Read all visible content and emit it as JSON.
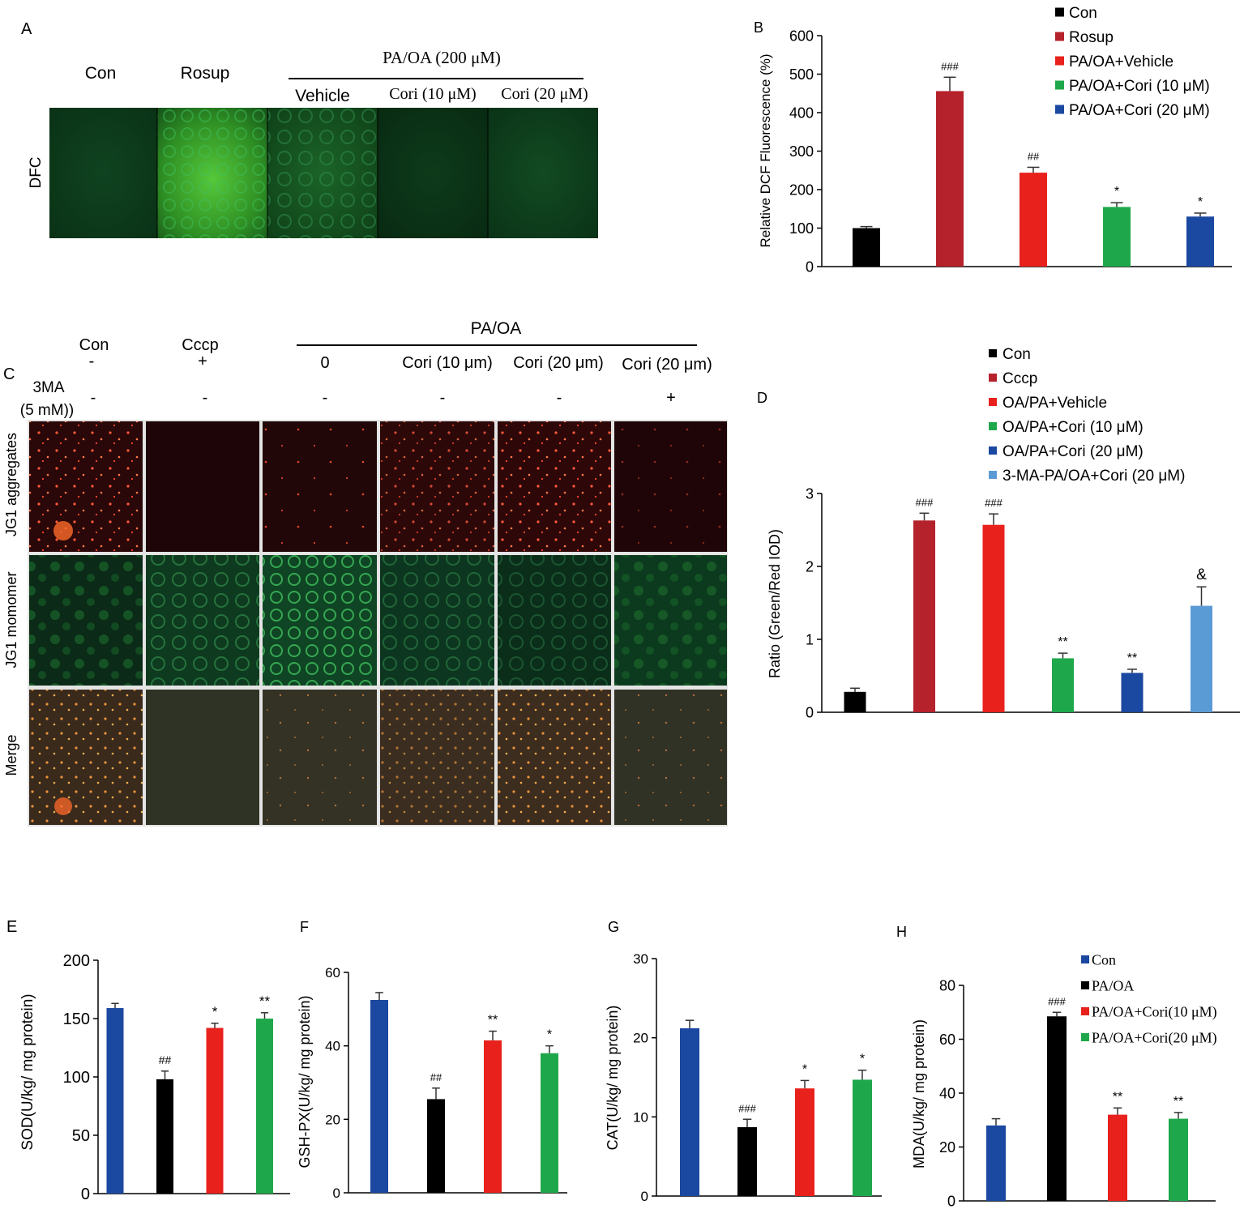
{
  "panels": {
    "A": {
      "letter": "A",
      "group_header": "PA/OA (200 μM)",
      "columns": [
        "Con",
        "Rosup",
        "Vehicle",
        "Cori (10 μM)",
        "Cori (20 μM)"
      ],
      "row_label": "DFC"
    },
    "C": {
      "letter": "C",
      "group_header": "PA/OA",
      "columns": [
        "Con",
        "Cccp",
        "0",
        "Cori (10 μm)",
        "Cori (20 μm)",
        "Cori (20 μm)"
      ],
      "cccp_row": [
        "-",
        "+"
      ],
      "treatment_label_line1": "3MA",
      "treatment_label_line2": "(5 mM))",
      "treatment_row": [
        "-",
        "-",
        "-",
        "-",
        "-",
        "+"
      ],
      "row_labels": [
        "JG1 aggregates",
        "JG1 momomer",
        "Merge"
      ]
    }
  },
  "chart_data": [
    {
      "id": "B",
      "type": "bar",
      "panel_label": "B",
      "ylabel": "Relative  DCF Fluorescence (%)",
      "ylim": [
        0,
        600
      ],
      "yticks": [
        0,
        100,
        200,
        300,
        400,
        500,
        600
      ],
      "legend_position": "top-right",
      "categories": [
        "Con",
        "Rosup",
        "PA/OA+Vehicle",
        "PA/OA+Cori (10 μM)",
        "PA/OA+Cori (20 μM)"
      ],
      "values": [
        100,
        456,
        244,
        155,
        130
      ],
      "errors": [
        4,
        36,
        14,
        11,
        9
      ],
      "annotations": [
        "",
        "###",
        "##",
        "*",
        "*"
      ],
      "colors": [
        "#000000",
        "#b5222b",
        "#e8211d",
        "#1fa84b",
        "#1b48a0"
      ]
    },
    {
      "id": "D",
      "type": "bar",
      "panel_label": "D",
      "ylabel": "Ratio (Green/Red IOD)",
      "ylim": [
        0,
        3
      ],
      "yticks": [
        0,
        1,
        2,
        3
      ],
      "legend_position": "top-right",
      "categories": [
        "Con",
        "Cccp",
        "OA/PA+Vehicle",
        "OA/PA+Cori (10 μM)",
        "OA/PA+Cori (20 μM)",
        "3-MA-PA/OA+Cori (20 μM)"
      ],
      "values": [
        0.28,
        2.63,
        2.57,
        0.74,
        0.54,
        1.46
      ],
      "errors": [
        0.05,
        0.1,
        0.15,
        0.07,
        0.05,
        0.26
      ],
      "annotations": [
        "",
        "###",
        "###",
        "**",
        "**",
        "&"
      ],
      "colors": [
        "#000000",
        "#b5222b",
        "#e8211d",
        "#1fa84b",
        "#1b48a0",
        "#5b9bd5"
      ]
    },
    {
      "id": "E",
      "type": "bar",
      "panel_label": "E",
      "ylabel": "SOD(U/kg/ mg protein)",
      "ylim": [
        0,
        200
      ],
      "yticks": [
        0,
        50,
        100,
        150,
        200
      ],
      "categories": [
        "Con",
        "PA/OA",
        "PA/OA+Cori(10 μM)",
        "PA/OA+Cori(20 μM)"
      ],
      "values": [
        159,
        98,
        142,
        150
      ],
      "errors": [
        4,
        7,
        4,
        5
      ],
      "annotations": [
        "",
        "##",
        "*",
        "**"
      ],
      "colors": [
        "#1b48a0",
        "#000000",
        "#e8211d",
        "#1fa84b"
      ]
    },
    {
      "id": "F",
      "type": "bar",
      "panel_label": "F",
      "ylabel": "GSH-PX(U/kg/  mg protein)",
      "ylim": [
        0,
        60
      ],
      "yticks": [
        0,
        20,
        40,
        60
      ],
      "categories": [
        "Con",
        "PA/OA",
        "PA/OA+Cori(10 μM)",
        "PA/OA+Cori(20 μM)"
      ],
      "values": [
        52.5,
        25.5,
        41.5,
        38
      ],
      "errors": [
        2,
        3,
        2.5,
        2
      ],
      "annotations": [
        "",
        "##",
        "**",
        "*"
      ],
      "colors": [
        "#1b48a0",
        "#000000",
        "#e8211d",
        "#1fa84b"
      ]
    },
    {
      "id": "G",
      "type": "bar",
      "panel_label": "G",
      "ylabel": "CAT(U/kg/  mg protein)",
      "ylim": [
        0,
        30
      ],
      "yticks": [
        0,
        10,
        20,
        30
      ],
      "categories": [
        "Con",
        "PA/OA",
        "PA/OA+Cori(10 μM)",
        "PA/OA+Cori(20 μM)"
      ],
      "values": [
        21.2,
        8.7,
        13.6,
        14.7
      ],
      "errors": [
        1.0,
        1.0,
        1.0,
        1.2
      ],
      "annotations": [
        "",
        "###",
        "*",
        "*"
      ],
      "colors": [
        "#1b48a0",
        "#000000",
        "#e8211d",
        "#1fa84b"
      ]
    },
    {
      "id": "H",
      "type": "bar",
      "panel_label": "H",
      "ylabel": "MDA(U/kg/ mg protein)",
      "ylim": [
        0,
        80
      ],
      "yticks": [
        0,
        20,
        40,
        60,
        80
      ],
      "legend_position": "top-right",
      "categories": [
        "Con",
        "PA/OA",
        "PA/OA+Cori(10 μM)",
        "PA/OA+Cori(20 μM)"
      ],
      "values": [
        28,
        68.5,
        32,
        30.5
      ],
      "errors": [
        2.5,
        1.5,
        2.5,
        2.3
      ],
      "annotations": [
        "",
        "###",
        "**",
        "**"
      ],
      "colors": [
        "#1b48a0",
        "#000000",
        "#e8211d",
        "#1fa84b"
      ]
    }
  ]
}
